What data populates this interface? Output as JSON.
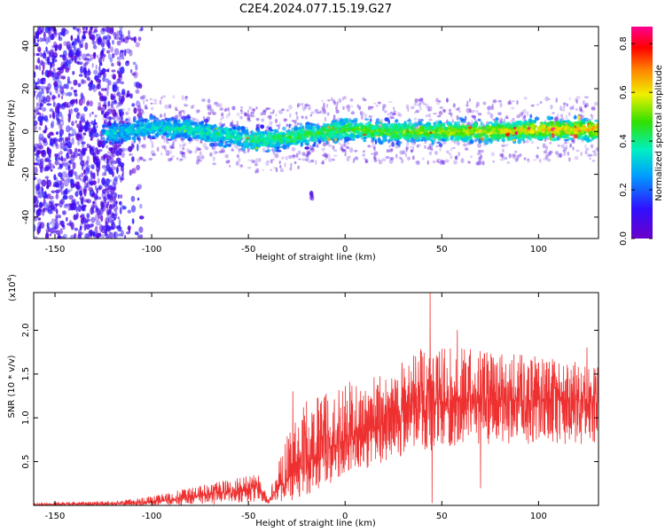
{
  "title": "C2E4.2024.077.15.19.G27",
  "colors": {
    "snr_line": "#ee3030",
    "frame": "#000000"
  },
  "chart_data": [
    {
      "type": "heatmap",
      "xlabel": "Height of straight line (km)",
      "ylabel": "Frequency (Hz)",
      "xlim": [
        -161,
        131
      ],
      "ylim": [
        -50,
        49
      ],
      "x_ticks": [
        -150,
        -100,
        -50,
        0,
        50,
        100
      ],
      "y_ticks": [
        -40,
        -20,
        0,
        20,
        40
      ],
      "colorbar": {
        "label": "Normalized spectral amplitude",
        "range": [
          0,
          0.87
        ],
        "ticks": [
          0.0,
          0.2,
          0.4,
          0.6,
          0.8
        ],
        "colormap": "rainbow (purple → blue → cyan → green → yellow → orange → red → magenta)"
      },
      "features": [
        {
          "x_range": [
            -161,
            -110
          ],
          "y_range": [
            -50,
            49
          ],
          "amplitude": [
            0.02,
            0.15
          ],
          "description": "broadband scatter"
        },
        {
          "x_range": [
            -125,
            131
          ],
          "frequency_center": 0,
          "frequency_half_width": 7,
          "amplitude": [
            0.2,
            0.85
          ]
        }
      ],
      "ridge_frequency": [
        {
          "x": -120,
          "y": -1
        },
        {
          "x": -100,
          "y": 2
        },
        {
          "x": -80,
          "y": 1
        },
        {
          "x": -60,
          "y": -2
        },
        {
          "x": -45,
          "y": -4
        },
        {
          "x": -30,
          "y": -3
        },
        {
          "x": -10,
          "y": 0
        },
        {
          "x": 0,
          "y": 1
        },
        {
          "x": 20,
          "y": 0
        },
        {
          "x": 50,
          "y": 0
        },
        {
          "x": 80,
          "y": 0
        },
        {
          "x": 100,
          "y": 1
        },
        {
          "x": 130,
          "y": 1
        }
      ]
    },
    {
      "type": "line",
      "xlabel": "Height of straight line (km)",
      "ylabel": "SNR (10 * v/v)",
      "y_exponent_label": "(x10",
      "y_exponent": "4",
      "y_exponent_close": ")",
      "xlim": [
        -161,
        131
      ],
      "ylim": [
        0,
        2.43
      ],
      "x_ticks": [
        -150,
        -100,
        -50,
        0,
        50,
        100
      ],
      "y_ticks": [
        0.5,
        1.0,
        1.5,
        2.0
      ],
      "series": [
        {
          "color": "#ee3030",
          "envelope": [
            {
              "x": -160,
              "low": 0.0,
              "mean": 0.01,
              "high": 0.03
            },
            {
              "x": -120,
              "low": 0.0,
              "mean": 0.02,
              "high": 0.05
            },
            {
              "x": -100,
              "low": 0.0,
              "mean": 0.04,
              "high": 0.1
            },
            {
              "x": -80,
              "low": 0.0,
              "mean": 0.1,
              "high": 0.2
            },
            {
              "x": -60,
              "low": 0.02,
              "mean": 0.15,
              "high": 0.3
            },
            {
              "x": -45,
              "low": 0.05,
              "mean": 0.2,
              "high": 0.35
            },
            {
              "x": -40,
              "low": 0.02,
              "mean": 0.05,
              "high": 0.1
            },
            {
              "x": -30,
              "low": 0.05,
              "mean": 0.3,
              "high": 0.8
            },
            {
              "x": -20,
              "low": 0.1,
              "mean": 0.5,
              "high": 1.2
            },
            {
              "x": 0,
              "low": 0.3,
              "mean": 0.75,
              "high": 1.4
            },
            {
              "x": 20,
              "low": 0.5,
              "mean": 0.95,
              "high": 1.5
            },
            {
              "x": 40,
              "low": 0.6,
              "mean": 1.15,
              "high": 1.8
            },
            {
              "x": 60,
              "low": 0.7,
              "mean": 1.2,
              "high": 1.8
            },
            {
              "x": 80,
              "low": 0.7,
              "mean": 1.2,
              "high": 1.75
            },
            {
              "x": 100,
              "low": 0.7,
              "mean": 1.2,
              "high": 1.7
            },
            {
              "x": 130,
              "low": 0.7,
              "mean": 1.2,
              "high": 1.6
            }
          ],
          "peaks": [
            {
              "x": -27,
              "value": 1.3
            },
            {
              "x": 44,
              "value": 2.43
            },
            {
              "x": 45,
              "value": 0.03
            },
            {
              "x": 58,
              "value": 2.0
            },
            {
              "x": 70,
              "value": 0.2
            },
            {
              "x": 125,
              "value": 1.8
            }
          ]
        }
      ]
    }
  ]
}
